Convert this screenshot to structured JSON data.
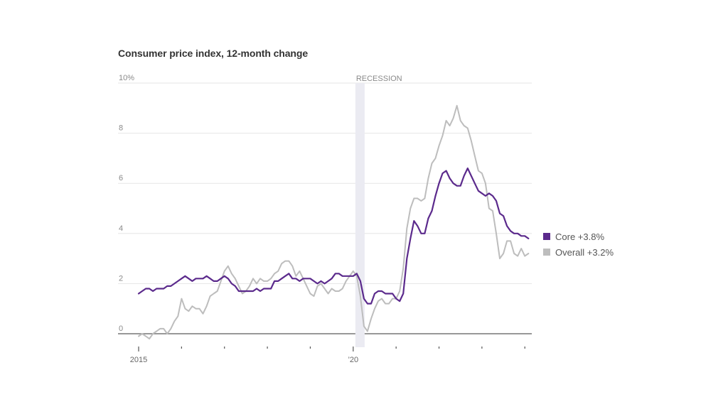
{
  "chart_data": {
    "type": "line",
    "title": "Consumer price index, 12-month change",
    "xlabel": "",
    "ylabel": "",
    "ylim": [
      0,
      10
    ],
    "y_ticks": [
      {
        "value": 0,
        "label": "0"
      },
      {
        "value": 2,
        "label": "2"
      },
      {
        "value": 4,
        "label": "4"
      },
      {
        "value": 6,
        "label": "6"
      },
      {
        "value": 8,
        "label": "8"
      },
      {
        "value": 10,
        "label": "10%"
      }
    ],
    "x_start": "2015-01",
    "x_frequency": "monthly",
    "x_ticks": [
      {
        "year": 2015,
        "label": "2015"
      },
      {
        "year": 2016,
        "label": ""
      },
      {
        "year": 2017,
        "label": ""
      },
      {
        "year": 2018,
        "label": ""
      },
      {
        "year": 2019,
        "label": ""
      },
      {
        "year": 2020,
        "label": "'20"
      },
      {
        "year": 2021,
        "label": ""
      },
      {
        "year": 2022,
        "label": ""
      },
      {
        "year": 2023,
        "label": ""
      },
      {
        "year": 2024,
        "label": ""
      }
    ],
    "grid": true,
    "legend_position": "right",
    "annotations": [
      {
        "type": "shaded-band",
        "label": "RECESSION",
        "start": "2020-02",
        "end": "2020-04"
      }
    ],
    "series": [
      {
        "name": "Core",
        "legend_label": "Core +3.8%",
        "color": "#5b2a8c",
        "values": [
          1.6,
          1.7,
          1.8,
          1.8,
          1.7,
          1.8,
          1.8,
          1.8,
          1.9,
          1.9,
          2.0,
          2.1,
          2.2,
          2.3,
          2.2,
          2.1,
          2.2,
          2.2,
          2.2,
          2.3,
          2.2,
          2.1,
          2.1,
          2.2,
          2.3,
          2.2,
          2.0,
          1.9,
          1.7,
          1.7,
          1.7,
          1.7,
          1.7,
          1.8,
          1.7,
          1.8,
          1.8,
          1.8,
          2.1,
          2.1,
          2.2,
          2.3,
          2.4,
          2.2,
          2.2,
          2.1,
          2.2,
          2.2,
          2.2,
          2.1,
          2.0,
          2.1,
          2.0,
          2.1,
          2.2,
          2.4,
          2.4,
          2.3,
          2.3,
          2.3,
          2.3,
          2.4,
          2.1,
          1.4,
          1.2,
          1.2,
          1.6,
          1.7,
          1.7,
          1.6,
          1.6,
          1.6,
          1.4,
          1.3,
          1.6,
          3.0,
          3.8,
          4.5,
          4.3,
          4.0,
          4.0,
          4.6,
          4.9,
          5.5,
          6.0,
          6.4,
          6.5,
          6.2,
          6.0,
          5.9,
          5.9,
          6.3,
          6.6,
          6.3,
          6.0,
          5.7,
          5.6,
          5.5,
          5.6,
          5.5,
          5.3,
          4.8,
          4.7,
          4.3,
          4.1,
          4.0,
          4.0,
          3.9,
          3.9,
          3.8
        ]
      },
      {
        "name": "Overall",
        "legend_label": "Overall +3.2%",
        "color": "#bdbdbd",
        "values": [
          -0.1,
          0.0,
          -0.1,
          -0.2,
          0.0,
          0.1,
          0.2,
          0.2,
          0.0,
          0.2,
          0.5,
          0.7,
          1.4,
          1.0,
          0.9,
          1.1,
          1.0,
          1.0,
          0.8,
          1.1,
          1.5,
          1.6,
          1.7,
          2.1,
          2.5,
          2.7,
          2.4,
          2.2,
          1.9,
          1.6,
          1.7,
          1.9,
          2.2,
          2.0,
          2.2,
          2.1,
          2.1,
          2.2,
          2.4,
          2.5,
          2.8,
          2.9,
          2.9,
          2.7,
          2.3,
          2.5,
          2.2,
          1.9,
          1.6,
          1.5,
          1.9,
          2.0,
          1.8,
          1.6,
          1.8,
          1.7,
          1.7,
          1.8,
          2.1,
          2.3,
          2.5,
          2.3,
          1.5,
          0.3,
          0.1,
          0.6,
          1.0,
          1.3,
          1.4,
          1.2,
          1.2,
          1.4,
          1.4,
          1.7,
          2.6,
          4.2,
          5.0,
          5.4,
          5.4,
          5.3,
          5.4,
          6.2,
          6.8,
          7.0,
          7.5,
          7.9,
          8.5,
          8.3,
          8.6,
          9.1,
          8.5,
          8.3,
          8.2,
          7.7,
          7.1,
          6.5,
          6.4,
          6.0,
          5.0,
          4.9,
          4.0,
          3.0,
          3.2,
          3.7,
          3.7,
          3.2,
          3.1,
          3.4,
          3.1,
          3.2
        ]
      }
    ]
  }
}
